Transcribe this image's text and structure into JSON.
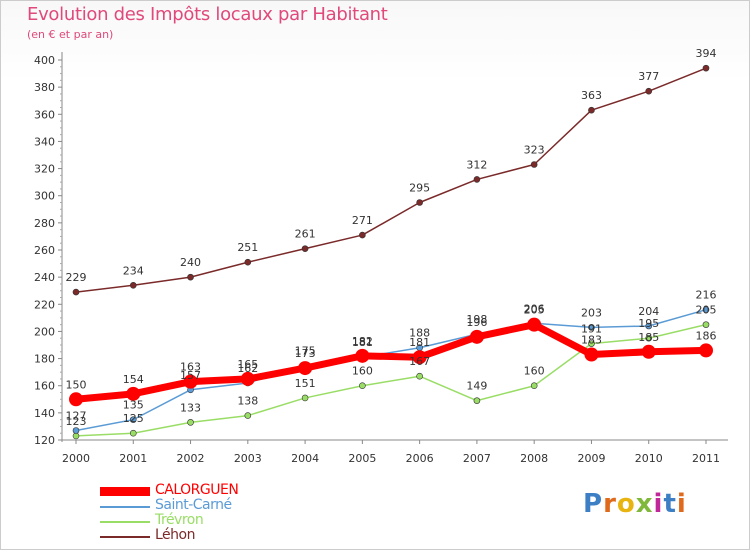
{
  "header": {
    "title": "Evolution des Impôts locaux par Habitant",
    "subtitle": "(en € et par an)"
  },
  "logo": {
    "text": "Proxiti",
    "colors": [
      "#3d7fc4",
      "#e06a1c",
      "#e8b410",
      "#7fb83a",
      "#c0289a",
      "#3d7fc4",
      "#e06a1c"
    ]
  },
  "chart_data": {
    "type": "line",
    "x": [
      2000,
      2001,
      2002,
      2003,
      2004,
      2005,
      2006,
      2007,
      2008,
      2009,
      2010,
      2011
    ],
    "ylim": [
      120,
      400
    ],
    "yticks": [
      120,
      140,
      160,
      180,
      200,
      220,
      240,
      260,
      280,
      300,
      320,
      340,
      360,
      380,
      400
    ],
    "grid": false,
    "legend_position": "bottom-left",
    "series": [
      {
        "name": "CALORGUEN",
        "color": "#ff0000",
        "values": [
          150,
          154,
          163,
          165,
          173,
          182,
          181,
          196,
          205,
          183,
          185,
          186
        ]
      },
      {
        "name": "Saint-Carné",
        "color": "#5b9bd5",
        "values": [
          127,
          135,
          157,
          162,
          175,
          181,
          188,
          198,
          206,
          203,
          204,
          216
        ]
      },
      {
        "name": "Trévron",
        "color": "#99dd66",
        "values": [
          123,
          125,
          133,
          138,
          151,
          160,
          167,
          149,
          160,
          191,
          195,
          205
        ]
      },
      {
        "name": "Léhon",
        "color": "#7b2a2a",
        "values": [
          229,
          234,
          240,
          251,
          261,
          271,
          295,
          312,
          323,
          363,
          377,
          394
        ]
      }
    ]
  }
}
